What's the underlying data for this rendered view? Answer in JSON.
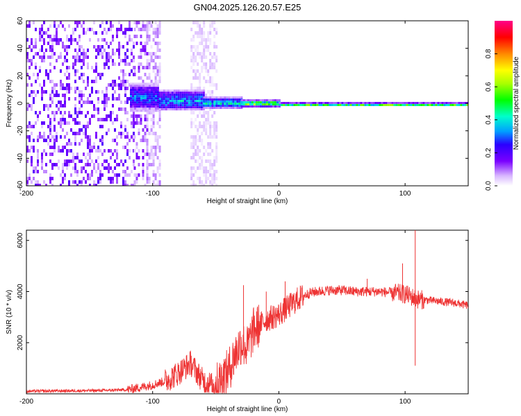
{
  "title": "GN04.2025.126.20.57.E25",
  "chart_data": [
    {
      "type": "heatmap",
      "xlabel": "Height of straight line (km)",
      "ylabel": "Frequency (Hz)",
      "xlim": [
        -200,
        150
      ],
      "ylim": [
        -60,
        60
      ],
      "x_ticks": [
        -200,
        -100,
        0,
        100
      ],
      "y_ticks": [
        -60,
        -40,
        -20,
        0,
        20,
        40,
        60
      ],
      "colorbar": {
        "label": "Normalized spectral amplitude",
        "range": [
          0,
          1
        ],
        "ticks": [
          0.0,
          0.2,
          0.4,
          0.6,
          0.8
        ],
        "tick_labels": [
          "0.0",
          "0.2",
          "0.4",
          "0.6",
          "0.8"
        ]
      },
      "regions": [
        {
          "x": [
            -200,
            -115
          ],
          "y": [
            -60,
            60
          ],
          "amplitude": 0.1
        },
        {
          "x": [
            -115,
            -105
          ],
          "y": [
            -60,
            60
          ],
          "amplitude": 0.08
        },
        {
          "x": [
            -105,
            -95
          ],
          "y": [
            -60,
            60
          ],
          "amplitude": 0.05
        },
        {
          "x": [
            -70,
            -50
          ],
          "y": [
            -60,
            60
          ],
          "amplitude": 0.03
        },
        {
          "x": [
            -118,
            -95
          ],
          "y": [
            -5,
            15
          ],
          "amplitude": 0.3
        },
        {
          "x": [
            -95,
            -60
          ],
          "y": [
            -5,
            10
          ],
          "amplitude": 0.35
        },
        {
          "x": [
            -60,
            -30
          ],
          "y": [
            -3,
            5
          ],
          "amplitude": 0.4
        },
        {
          "x": [
            -30,
            0
          ],
          "y": [
            -2,
            3
          ],
          "amplitude": 0.6
        },
        {
          "x": [
            0,
            150
          ],
          "y": [
            -1,
            1
          ],
          "amplitude": 0.75
        }
      ]
    },
    {
      "type": "line",
      "xlabel": "Height of straight line (km)",
      "ylabel": "SNR (10 * v/v)",
      "xlim": [
        -200,
        150
      ],
      "ylim": [
        0,
        6400
      ],
      "x_ticks": [
        -200,
        -100,
        0,
        100
      ],
      "y_ticks": [
        2000,
        4000,
        6000
      ],
      "series": [
        {
          "color": "#ee3333",
          "x": [
            -200,
            -180,
            -160,
            -140,
            -120,
            -110,
            -100,
            -90,
            -80,
            -70,
            -60,
            -50,
            -45,
            -40,
            -35,
            -30,
            -25,
            -20,
            -15,
            -10,
            -5,
            0,
            5,
            10,
            15,
            20,
            25,
            30,
            40,
            50,
            60,
            70,
            80,
            90,
            100,
            105,
            107,
            110,
            120,
            130,
            140,
            150
          ],
          "y": [
            100,
            110,
            120,
            130,
            160,
            250,
            350,
            500,
            800,
            1200,
            500,
            300,
            600,
            900,
            1500,
            2000,
            1800,
            2500,
            2700,
            2900,
            3000,
            3100,
            3300,
            3500,
            3700,
            3850,
            3950,
            4000,
            4050,
            4050,
            4000,
            4000,
            4000,
            3950,
            3900,
            3800,
            3750,
            3700,
            3650,
            3600,
            3550,
            3450
          ],
          "spikes": [
            {
              "x": -70,
              "y": 1650
            },
            {
              "x": -28,
              "y": 4250
            },
            {
              "x": -10,
              "y": 4000
            },
            {
              "x": 5,
              "y": 4400
            },
            {
              "x": 70,
              "y": 4500
            },
            {
              "x": 98,
              "y": 5100
            },
            {
              "x": 108,
              "y": 6500
            },
            {
              "x": 108,
              "y": 1100
            }
          ]
        }
      ]
    }
  ]
}
